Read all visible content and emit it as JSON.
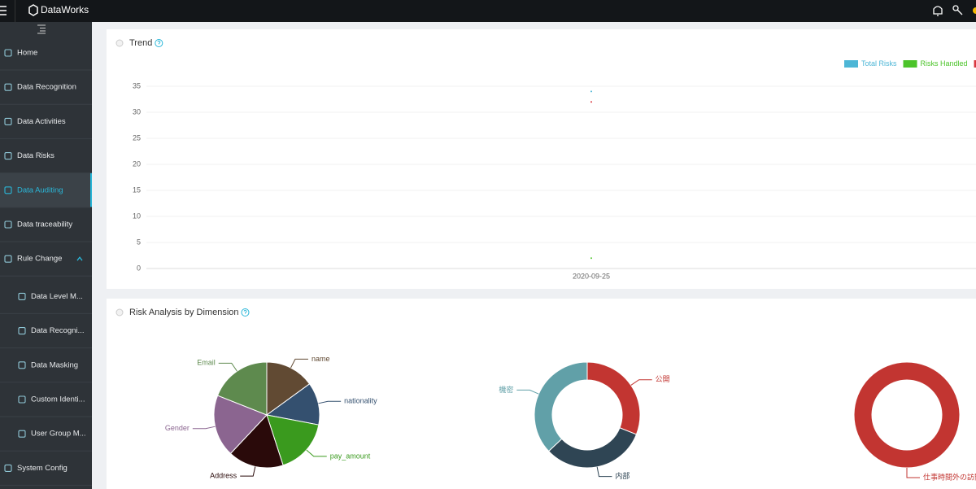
{
  "topbar": {
    "brand": "DataWorks"
  },
  "nav": {
    "items": [
      {
        "label": "Home"
      },
      {
        "label": "Data Recognition"
      },
      {
        "label": "Data Activities"
      },
      {
        "label": "Data Risks"
      },
      {
        "label": "Data Auditing",
        "active": true
      },
      {
        "label": "Data traceability"
      },
      {
        "label": "Rule Change",
        "expanded": true,
        "children": [
          {
            "label": "Data Level M..."
          },
          {
            "label": "Data Recogni..."
          },
          {
            "label": "Data Masking"
          },
          {
            "label": "Custom Identi..."
          },
          {
            "label": "User Group M..."
          }
        ]
      },
      {
        "label": "System Config"
      }
    ]
  },
  "panels": [
    {
      "title": "Trend",
      "chart_data": {
        "type": "line",
        "x": [
          "2020-09-25"
        ],
        "series": [
          {
            "name": "Total Risks",
            "color": "#4db6d6",
            "values": [
              34
            ]
          },
          {
            "name": "Risks Handled",
            "color": "#4cc42a",
            "values": [
              2
            ]
          },
          {
            "color": "#d9363e",
            "values": [
              32
            ]
          }
        ],
        "ylim": [
          0,
          35
        ],
        "yticks": [
          0,
          5,
          10,
          15,
          20,
          25,
          30,
          35
        ],
        "grid": true,
        "legend": "top-right"
      }
    },
    {
      "title": "Risk Analysis by Dimension",
      "chart_data": [
        {
          "type": "pie",
          "donut": false,
          "categories": [
            "name",
            "nationality",
            "pay_amount",
            "Address",
            "Gender",
            "Email"
          ],
          "values": [
            15,
            13,
            17,
            17,
            19,
            19
          ],
          "colors": [
            "#614a33",
            "#34506f",
            "#3a9a1e",
            "#2a0a0a",
            "#8b6590",
            "#5e8a4e"
          ]
        },
        {
          "type": "pie",
          "donut": true,
          "categories": [
            "公開",
            "内部",
            "機密"
          ],
          "values": [
            31,
            32,
            37
          ],
          "colors": [
            "#c23531",
            "#2f4554",
            "#61a0a8"
          ]
        },
        {
          "type": "pie",
          "donut": true,
          "categories": [
            "仕事時間外の訪問"
          ],
          "values": [
            100
          ],
          "colors": [
            "#c23531"
          ]
        }
      ]
    }
  ]
}
